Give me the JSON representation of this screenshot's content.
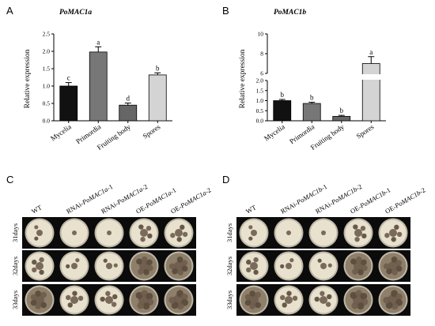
{
  "panels": {
    "A": {
      "letter": "A",
      "gene": "PoMAC1a"
    },
    "B": {
      "letter": "B",
      "gene": "PoMAC1b"
    },
    "C": {
      "letter": "C"
    },
    "D": {
      "letter": "D"
    }
  },
  "chart_data": [
    {
      "panel": "A",
      "type": "bar",
      "title": "PoMAC1a",
      "ylabel": "Relative expression",
      "xlabel": "",
      "ylim": [
        0,
        2.5
      ],
      "yticks": [
        "0.0",
        "0.5",
        "1.0",
        "1.5",
        "2.0",
        "2.5"
      ],
      "categories": [
        "Mycelia",
        "Primordia",
        "Fruiting body",
        "Spores"
      ],
      "values": [
        1.0,
        1.98,
        0.45,
        1.32
      ],
      "errors": [
        0.1,
        0.15,
        0.06,
        0.06
      ],
      "significance": [
        "c",
        "a",
        "d",
        "b"
      ],
      "bar_colors": [
        "#111111",
        "#777777",
        "#666666",
        "#d4d4d4"
      ]
    },
    {
      "panel": "B",
      "type": "bar",
      "title": "PoMAC1b",
      "ylabel": "Relative expression",
      "xlabel": "",
      "y_axis_break": true,
      "ylim": [
        0,
        10
      ],
      "lower_segment": {
        "ylim": [
          0,
          2.0
        ],
        "yticks": [
          "0.0",
          "0.5",
          "1.0",
          "1.5",
          "2.0"
        ]
      },
      "upper_segment": {
        "ylim": [
          6,
          10
        ],
        "yticks": [
          "6",
          "8",
          "10"
        ]
      },
      "categories": [
        "Mycelia",
        "Primordia",
        "Fruiting body",
        "Spores"
      ],
      "values": [
        1.0,
        0.86,
        0.22,
        7.0
      ],
      "errors": [
        0.06,
        0.06,
        0.05,
        0.7
      ],
      "significance": [
        "b",
        "b",
        "b",
        "a"
      ],
      "bar_colors": [
        "#111111",
        "#777777",
        "#666666",
        "#d4d4d4"
      ]
    }
  ],
  "photo_panels": {
    "C": {
      "columns": [
        {
          "plain": "WT",
          "italic": ""
        },
        {
          "plain": "RNAi-",
          "italic": "PoMAC1a",
          "suffix": "-1"
        },
        {
          "plain": "RNAi-",
          "italic": "PoMAC1a",
          "suffix": "-2"
        },
        {
          "plain": "OE-",
          "italic": "PoMAC1a",
          "suffix": "-1"
        },
        {
          "plain": "OE-",
          "italic": "PoMAC1a",
          "suffix": "-2"
        }
      ],
      "rows": [
        "31days",
        "32days",
        "33days"
      ]
    },
    "D": {
      "columns": [
        {
          "plain": "WT",
          "italic": ""
        },
        {
          "plain": "RNAi-",
          "italic": "PoMAC1b",
          "suffix": "-1"
        },
        {
          "plain": "RNAi-",
          "italic": "PoMAC1b",
          "suffix": "-2"
        },
        {
          "plain": "OE-",
          "italic": "PoMAC1b",
          "suffix": "-1"
        },
        {
          "plain": "OE-",
          "italic": "PoMAC1b",
          "suffix": "-2"
        }
      ],
      "rows": [
        "31days",
        "32days",
        "33days"
      ]
    }
  }
}
